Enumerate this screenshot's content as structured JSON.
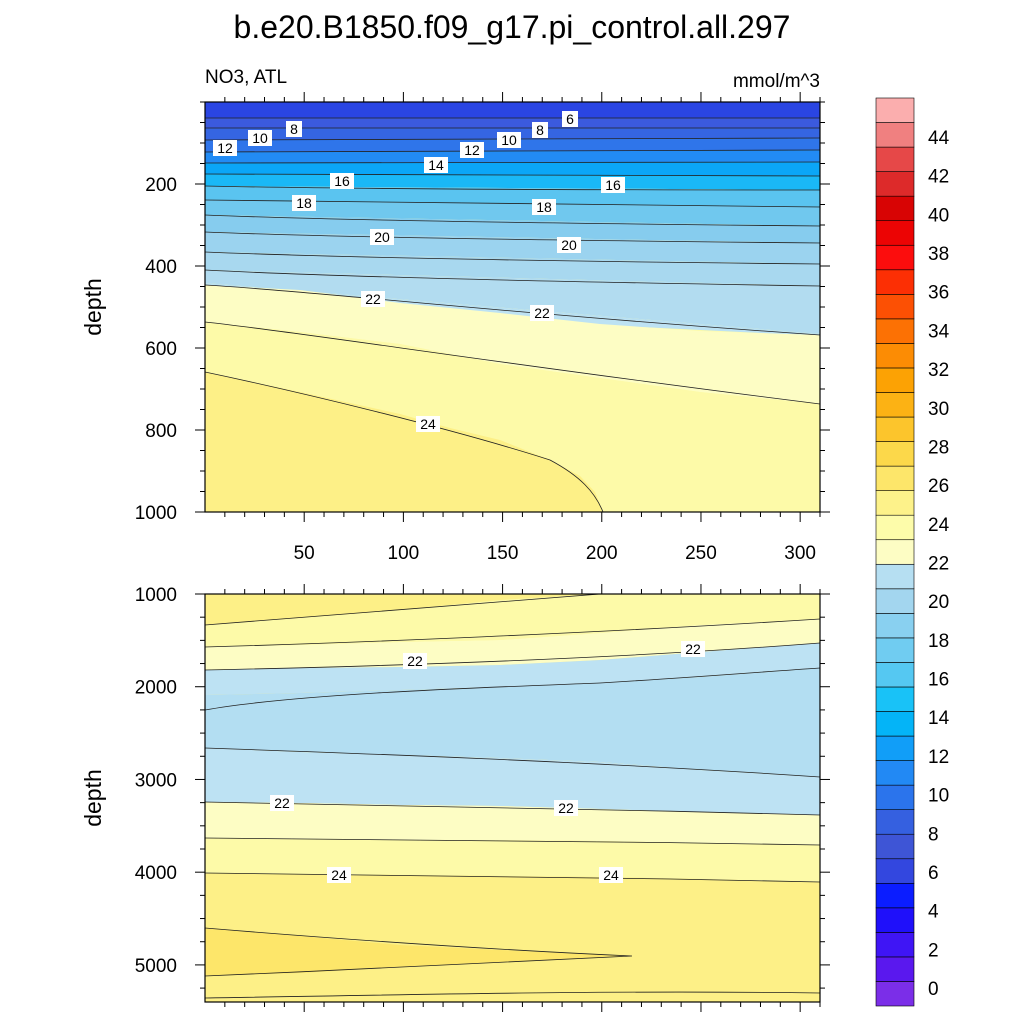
{
  "title": "b.e20.B1850.f09_g17.pi_control.all.297",
  "subtitle_left": "NO3, ATL",
  "subtitle_right": "mmol/m^3",
  "colorbar": {
    "levels": [
      0,
      2,
      4,
      6,
      8,
      10,
      12,
      14,
      16,
      18,
      20,
      22,
      24,
      26,
      28,
      30,
      32,
      34,
      36,
      38,
      40,
      42,
      44
    ],
    "tick_labels": [
      "0",
      "2",
      "4",
      "6",
      "8",
      "10",
      "12",
      "14",
      "16",
      "18",
      "20",
      "22",
      "24",
      "26",
      "28",
      "30",
      "32",
      "34",
      "36",
      "38",
      "40",
      "42",
      "44"
    ],
    "colors": [
      "#7b2ee8",
      "#5a18ee",
      "#3f15f5",
      "#1f10fa",
      "#0b1dff",
      "#3347df",
      "#3e55d6",
      "#3560e0",
      "#2b74ec",
      "#2289f4",
      "#119ef8",
      "#04b4f7",
      "#19c2f7",
      "#55c8f2",
      "#70ccf1",
      "#89d0f0",
      "#a3d6ef",
      "#b6dff2",
      "#fdfdc4",
      "#fdfcaa",
      "#fdf28a",
      "#fde66a",
      "#fcd84a",
      "#fcc52c",
      "#fcb214",
      "#fca204",
      "#fc8c04",
      "#fc7104",
      "#fc5004",
      "#fc2f04",
      "#fc0d0d",
      "#ec0404",
      "#d80404",
      "#dd2a2a",
      "#e64848",
      "#f08080",
      "#fbaeae"
    ]
  },
  "chart_data": [
    {
      "type": "contour",
      "panel": "upper",
      "variable": "NO3, ATL",
      "units": "mmol/m^3",
      "xlabel": "",
      "ylabel": "depth",
      "xlim": [
        0,
        310
      ],
      "ylim": [
        1000,
        0
      ],
      "x_ticks": [
        50,
        100,
        150,
        200,
        250,
        300
      ],
      "y_ticks": [
        200,
        400,
        600,
        800,
        1000
      ],
      "contour_levels": [
        {
          "level": 4,
          "depth_at_x": {
            "0": 10,
            "310": 10
          }
        },
        {
          "level": 6,
          "depth_at_x": {
            "0": 30,
            "310": 30
          }
        },
        {
          "level": 8,
          "depth_at_x": {
            "0": 60,
            "310": 60
          }
        },
        {
          "level": 10,
          "depth_at_x": {
            "0": 85,
            "310": 85
          }
        },
        {
          "level": 12,
          "depth_at_x": {
            "0": 110,
            "310": 112
          }
        },
        {
          "level": 14,
          "depth_at_x": {
            "0": 150,
            "310": 155
          }
        },
        {
          "level": 16,
          "depth_at_x": {
            "0": 190,
            "310": 200
          }
        },
        {
          "level": 18,
          "depth_at_x": {
            "0": 250,
            "310": 265
          }
        },
        {
          "level": 20,
          "depth_at_x": {
            "0": 320,
            "310": 345
          }
        },
        {
          "level": 21,
          "depth_at_x": {
            "0": 370,
            "310": 450
          }
        },
        {
          "level": 22,
          "depth_at_x": {
            "0": 440,
            "310": 565
          }
        },
        {
          "level": 23,
          "depth_at_x": {
            "0": 530,
            "310": 740
          }
        },
        {
          "level": 24,
          "depth_at_x": {
            "0": 660,
            "200": 1000
          }
        }
      ],
      "contour_labels": [
        {
          "text": "6",
          "x": 184,
          "depth": 45
        },
        {
          "text": "8",
          "x": 45,
          "depth": 65
        },
        {
          "text": "8",
          "x": 168,
          "depth": 67
        },
        {
          "text": "10",
          "x": 28,
          "depth": 88
        },
        {
          "text": "10",
          "x": 152,
          "depth": 92
        },
        {
          "text": "12",
          "x": 10,
          "depth": 115
        },
        {
          "text": "12",
          "x": 135,
          "depth": 118
        },
        {
          "text": "14",
          "x": 117,
          "depth": 155
        },
        {
          "text": "16",
          "x": 70,
          "depth": 195
        },
        {
          "text": "16",
          "x": 206,
          "depth": 205
        },
        {
          "text": "18",
          "x": 50,
          "depth": 253
        },
        {
          "text": "18",
          "x": 172,
          "depth": 262
        },
        {
          "text": "20",
          "x": 90,
          "depth": 335
        },
        {
          "text": "20",
          "x": 184,
          "depth": 350
        },
        {
          "text": "22",
          "x": 85,
          "depth": 478
        },
        {
          "text": "22",
          "x": 171,
          "depth": 510
        },
        {
          "text": "24",
          "x": 113,
          "depth": 803
        }
      ]
    },
    {
      "type": "contour",
      "panel": "lower",
      "variable": "NO3, ATL",
      "units": "mmol/m^3",
      "xlabel": "",
      "ylabel": "depth",
      "xlim": [
        0,
        310
      ],
      "ylim": [
        5400,
        1000
      ],
      "x_ticks": [
        50,
        100,
        150,
        200,
        250,
        300
      ],
      "y_ticks": [
        1000,
        2000,
        3000,
        4000,
        5000
      ],
      "contour_levels": [
        {
          "level": 24,
          "depth_at_x": {
            "0": 1320,
            "200": 1000
          }
        },
        {
          "level": 23,
          "depth_at_x": {
            "0": 1550,
            "310": 1250
          }
        },
        {
          "level": 22,
          "depth_at_x": {
            "0": 1800,
            "310": 1520
          }
        },
        {
          "level": 21,
          "depth_at_x": {
            "0": 2250,
            "310": 1780
          }
        },
        {
          "level": 21,
          "depth_at_x": {
            "0": 2650,
            "310": 2950
          }
        },
        {
          "level": 22,
          "depth_at_x": {
            "0": 3250,
            "310": 3370
          }
        },
        {
          "level": 23,
          "depth_at_x": {
            "0": 3620,
            "310": 3700
          }
        },
        {
          "level": 24,
          "depth_at_x": {
            "0": 3990,
            "310": 4070
          }
        },
        {
          "level": 25,
          "depth_at_x": {
            "0": 4580,
            "215": 4860
          }
        },
        {
          "level": 24,
          "depth_at_x": {
            "0": 5360,
            "310": 5260
          }
        }
      ],
      "contour_labels": [
        {
          "text": "22",
          "x": 105,
          "depth": 1750
        },
        {
          "text": "22",
          "x": 245,
          "depth": 1650
        },
        {
          "text": "22",
          "x": 40,
          "depth": 3250
        },
        {
          "text": "22",
          "x": 182,
          "depth": 3300
        },
        {
          "text": "24",
          "x": 68,
          "depth": 4020
        },
        {
          "text": "24",
          "x": 206,
          "depth": 4020
        }
      ]
    }
  ]
}
